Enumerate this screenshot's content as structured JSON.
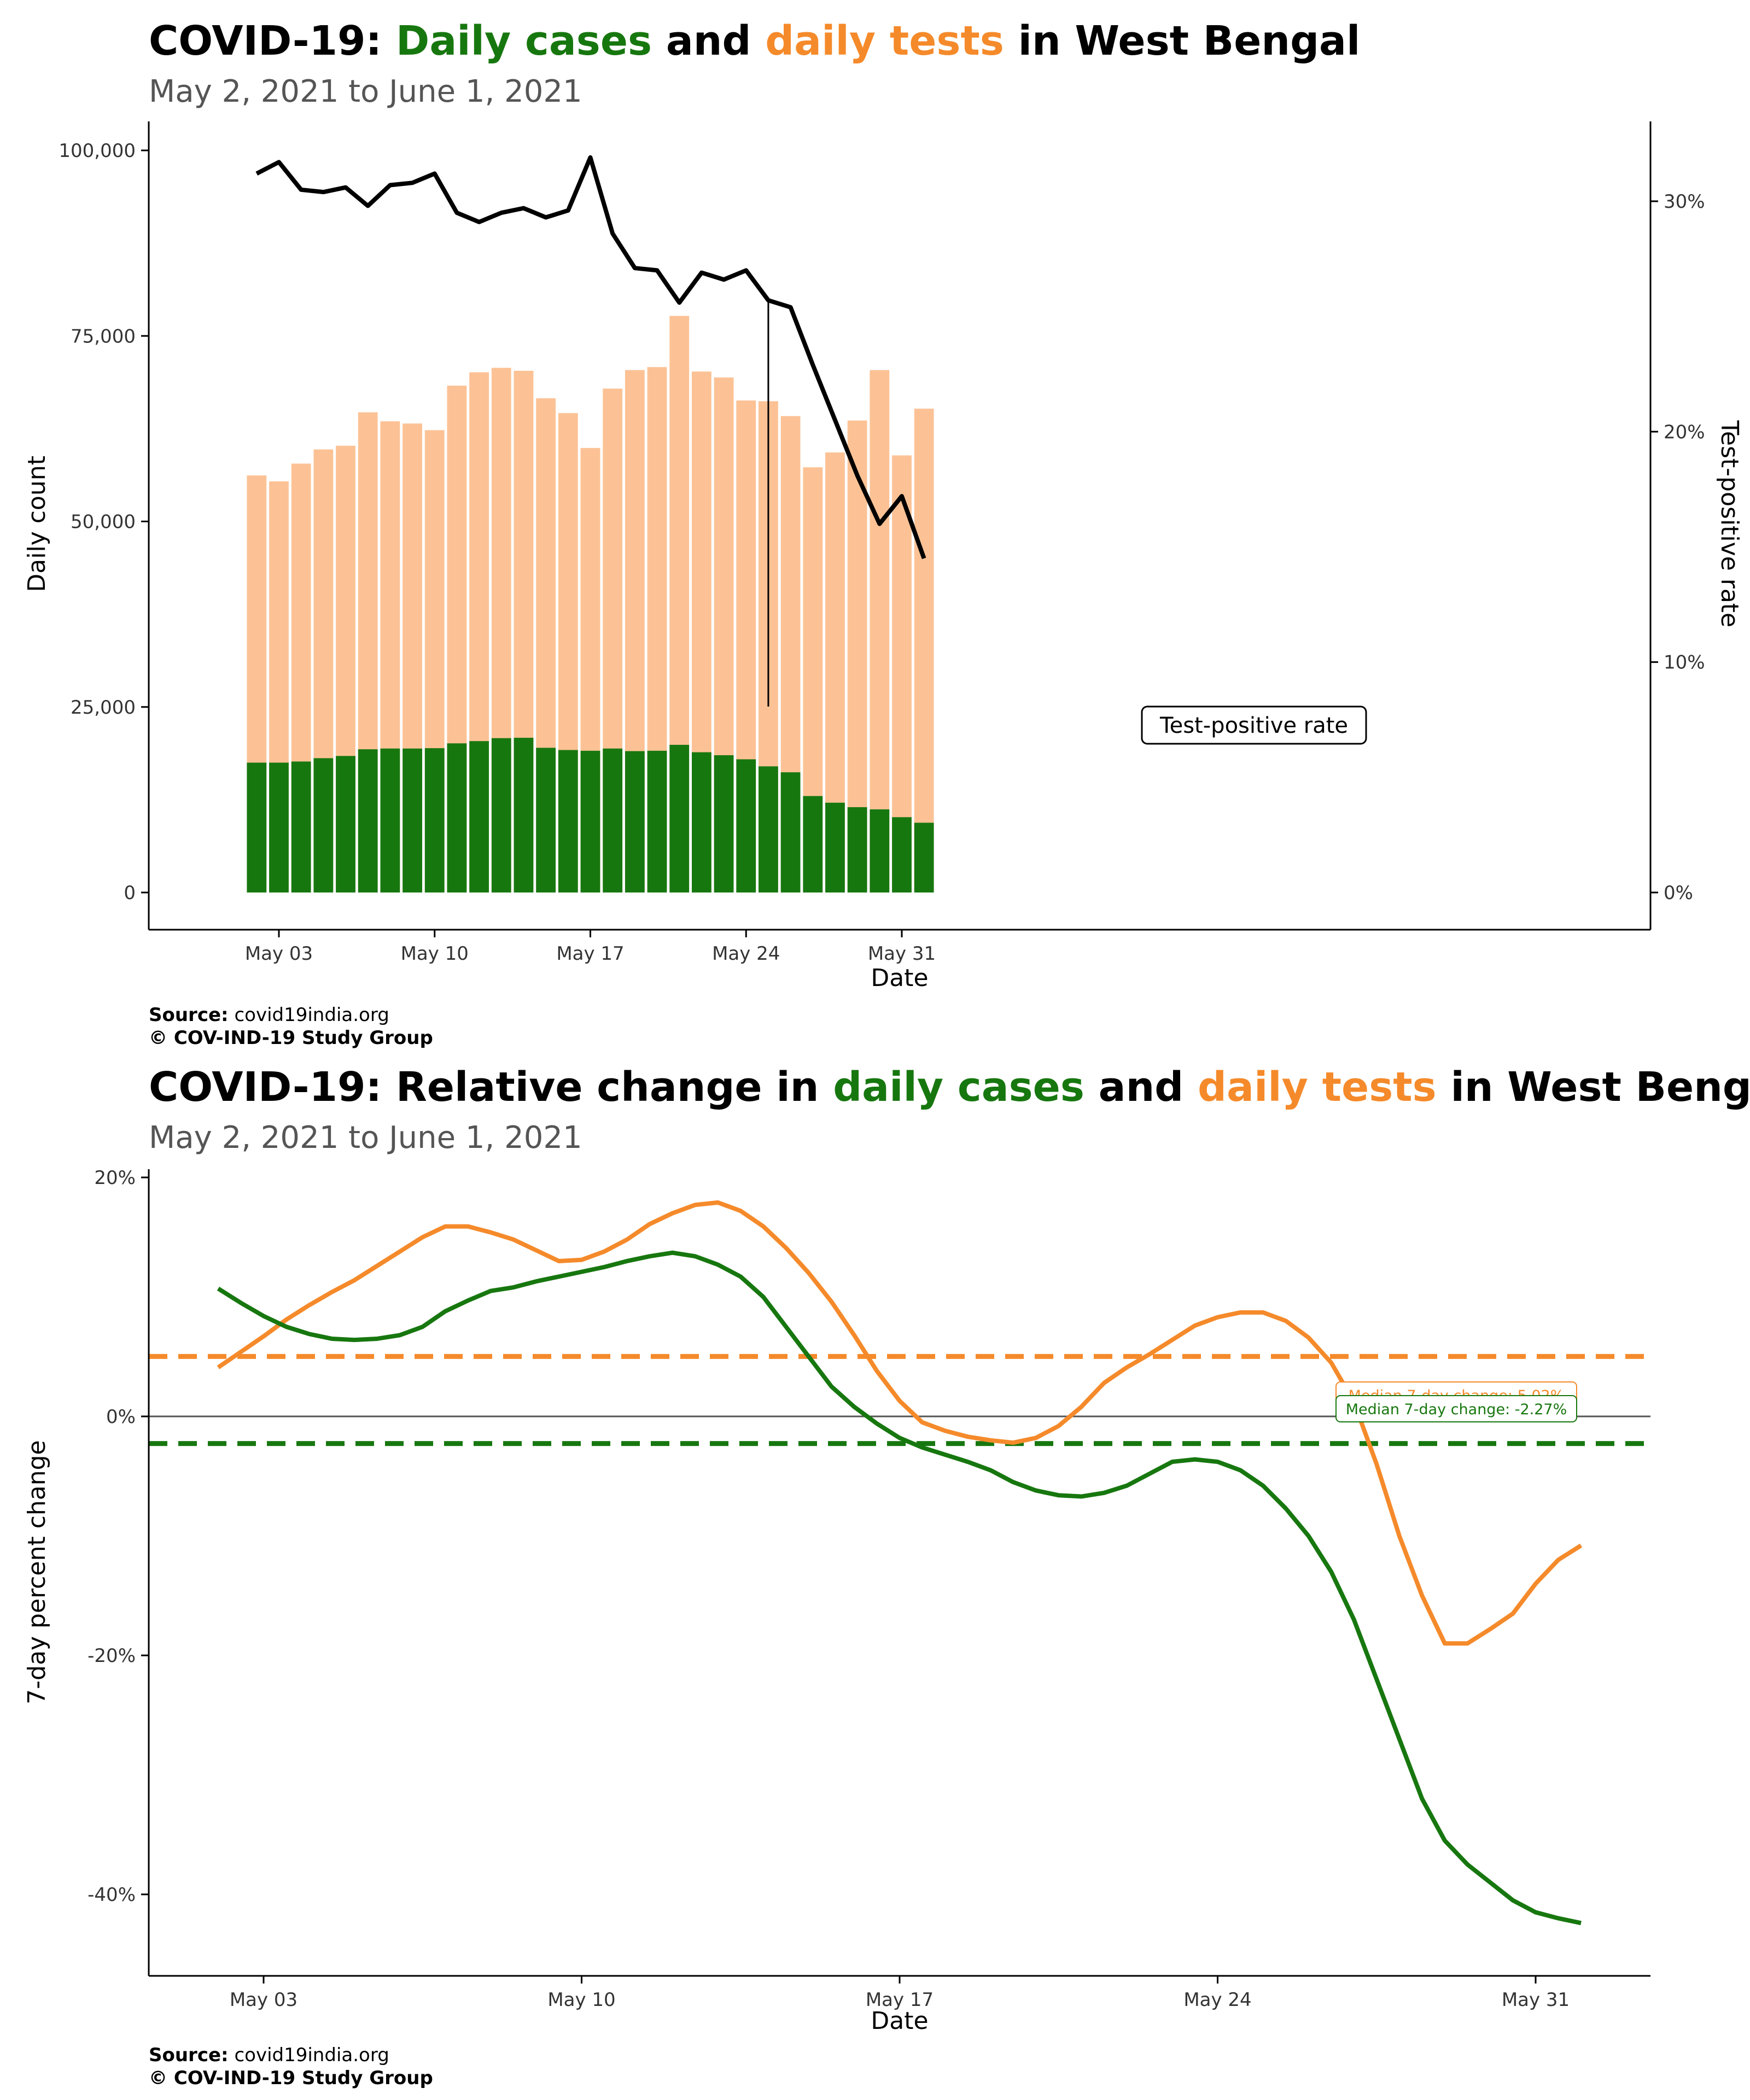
{
  "colors": {
    "cases": "#17770f",
    "tests": "#fcc295",
    "tests_line": "#f58a2b",
    "tpr": "#000000"
  },
  "chart1": {
    "title": {
      "prefix": "COVID-19:",
      "cases": "Daily cases",
      "mid": "and",
      "tests": "daily tests",
      "suffix": "in West Bengal"
    },
    "subtitle": "May  2, 2021 to June  1, 2021",
    "source_label": "Source:",
    "source_value": "covid19india.org",
    "copyright": "© COV-IND-19 Study Group"
  },
  "chart2": {
    "title": {
      "prefix": "COVID-19: Relative change in",
      "cases": "daily cases",
      "mid": "and",
      "tests": "daily tests",
      "suffix": "in West Bengal"
    },
    "subtitle": "May  2, 2021 to June  1, 2021",
    "source_label": "Source:",
    "source_value": "covid19india.org",
    "copyright": "© COV-IND-19 Study Group"
  },
  "chart_data": [
    {
      "type": "bar",
      "xlabel": "Date",
      "ylabel": "Daily count",
      "y2label": "Test-positive rate",
      "ylim": [
        0,
        100000
      ],
      "y2lim": [
        0,
        0.32
      ],
      "yticks": [
        0,
        25000,
        50000,
        75000,
        100000
      ],
      "ytick_labels": [
        "0",
        "25,000",
        "50,000",
        "75,000",
        "100,000"
      ],
      "y2ticks": [
        0,
        0.1,
        0.2,
        0.3
      ],
      "y2tick_labels": [
        "0%",
        "10%",
        "20%",
        "30%"
      ],
      "xticks": [
        "2021-05-03",
        "2021-05-10",
        "2021-05-17",
        "2021-05-24",
        "2021-05-31"
      ],
      "xtick_labels": [
        "May 03",
        "May 10",
        "May 17",
        "May 24",
        "May 31"
      ],
      "dates": [
        "2021-05-02",
        "2021-05-03",
        "2021-05-04",
        "2021-05-05",
        "2021-05-06",
        "2021-05-07",
        "2021-05-08",
        "2021-05-09",
        "2021-05-10",
        "2021-05-11",
        "2021-05-12",
        "2021-05-13",
        "2021-05-14",
        "2021-05-15",
        "2021-05-16",
        "2021-05-17",
        "2021-05-18",
        "2021-05-19",
        "2021-05-20",
        "2021-05-21",
        "2021-05-22",
        "2021-05-23",
        "2021-05-24",
        "2021-05-25",
        "2021-05-26",
        "2021-05-27",
        "2021-05-28",
        "2021-05-29",
        "2021-05-30",
        "2021-05-31",
        "2021-06-01"
      ],
      "series": [
        {
          "name": "Daily cases",
          "values": [
            17500,
            17500,
            17650,
            18100,
            18400,
            19300,
            19400,
            19400,
            19450,
            20100,
            20400,
            20800,
            20850,
            19500,
            19200,
            19100,
            19400,
            19050,
            19100,
            19900,
            18900,
            18500,
            17950,
            17000,
            16200,
            13000,
            12100,
            11500,
            11200,
            10150,
            9400
          ]
        },
        {
          "name": "Daily tests",
          "values": [
            56200,
            55400,
            57800,
            59700,
            60200,
            64700,
            63500,
            63200,
            62300,
            68300,
            70100,
            70700,
            70300,
            66600,
            64600,
            59900,
            67900,
            70400,
            70800,
            77700,
            70200,
            69400,
            66300,
            66200,
            64200,
            57300,
            59300,
            63600,
            70400,
            58900,
            65200
          ]
        },
        {
          "name": "Test-positive rate",
          "values": [
            0.312,
            0.317,
            0.305,
            0.304,
            0.306,
            0.298,
            0.307,
            0.308,
            0.312,
            0.295,
            0.291,
            0.295,
            0.297,
            0.293,
            0.296,
            0.319,
            0.286,
            0.271,
            0.27,
            0.256,
            0.269,
            0.266,
            0.27,
            0.257,
            0.254,
            0.229,
            0.205,
            0.181,
            0.16,
            0.172,
            0.145
          ]
        }
      ],
      "annotation": {
        "text": "Test-positive rate",
        "date": "2021-05-25"
      }
    },
    {
      "type": "line",
      "xlabel": "Date",
      "ylabel": "7-day percent change",
      "ylim": [
        -0.46,
        0.21
      ],
      "yticks": [
        -0.4,
        -0.2,
        0,
        0.2
      ],
      "ytick_labels": [
        "-40%",
        "-20%",
        "0%",
        "20%"
      ],
      "xticks": [
        "2021-05-03",
        "2021-05-10",
        "2021-05-17",
        "2021-05-24",
        "2021-05-31"
      ],
      "xtick_labels": [
        "May 03",
        "May 10",
        "May 17",
        "May 24",
        "May 31"
      ],
      "series": [
        {
          "name": "Daily tests",
          "x": [
            2,
            2.5,
            3,
            3.5,
            4,
            4.5,
            5,
            5.5,
            6,
            6.5,
            7,
            7.5,
            8,
            8.5,
            9,
            9.5,
            10,
            10.5,
            11,
            11.5,
            12,
            12.5,
            13,
            13.5,
            14,
            14.5,
            15,
            15.5,
            16,
            16.5,
            17,
            17.5,
            18,
            18.5,
            19,
            19.5,
            20,
            20.5,
            21,
            21.5,
            22,
            22.5,
            23,
            23.5,
            24,
            24.5,
            25,
            25.5,
            26,
            26.5,
            27,
            27.5,
            28,
            28.5,
            29,
            29.5,
            30,
            30.5,
            31,
            31.5,
            32
          ],
          "values": [
            0.041,
            0.054,
            0.067,
            0.081,
            0.093,
            0.104,
            0.114,
            0.126,
            0.138,
            0.15,
            0.159,
            0.159,
            0.154,
            0.148,
            0.139,
            0.13,
            0.131,
            0.138,
            0.148,
            0.161,
            0.17,
            0.177,
            0.179,
            0.172,
            0.159,
            0.141,
            0.12,
            0.096,
            0.068,
            0.038,
            0.013,
            -0.005,
            -0.012,
            -0.017,
            -0.02,
            -0.022,
            -0.018,
            -0.008,
            0.008,
            0.028,
            0.041,
            0.052,
            0.064,
            0.076,
            0.083,
            0.087,
            0.087,
            0.08,
            0.066,
            0.045,
            0.012,
            -0.04,
            -0.1,
            -0.15,
            -0.19,
            -0.19,
            -0.178,
            -0.165,
            -0.14,
            -0.12,
            -0.108
          ]
        },
        {
          "name": "Daily cases",
          "x": [
            2,
            2.5,
            3,
            3.5,
            4,
            4.5,
            5,
            5.5,
            6,
            6.5,
            7,
            7.5,
            8,
            8.5,
            9,
            9.5,
            10,
            10.5,
            11,
            11.5,
            12,
            12.5,
            13,
            13.5,
            14,
            14.5,
            15,
            15.5,
            16,
            16.5,
            17,
            17.5,
            18,
            18.5,
            19,
            19.5,
            20,
            20.5,
            21,
            21.5,
            22,
            22.5,
            23,
            23.5,
            24,
            24.5,
            25,
            25.5,
            26,
            26.5,
            27,
            27.5,
            28,
            28.5,
            29,
            29.5,
            30,
            30.5,
            31,
            31.5,
            32
          ],
          "values": [
            0.107,
            0.095,
            0.084,
            0.075,
            0.069,
            0.065,
            0.064,
            0.065,
            0.068,
            0.075,
            0.088,
            0.097,
            0.105,
            0.108,
            0.113,
            0.117,
            0.121,
            0.125,
            0.13,
            0.134,
            0.137,
            0.134,
            0.127,
            0.117,
            0.1,
            0.075,
            0.05,
            0.025,
            0.008,
            -0.006,
            -0.018,
            -0.026,
            -0.032,
            -0.038,
            -0.045,
            -0.055,
            -0.062,
            -0.066,
            -0.067,
            -0.064,
            -0.058,
            -0.048,
            -0.038,
            -0.036,
            -0.038,
            -0.045,
            -0.058,
            -0.077,
            -0.1,
            -0.13,
            -0.17,
            -0.22,
            -0.27,
            -0.32,
            -0.355,
            -0.375,
            -0.39,
            -0.405,
            -0.415,
            -0.42,
            -0.424
          ]
        }
      ],
      "reference_lines": [
        {
          "label": "Median 7-day change: 5.02%",
          "value": 0.0502,
          "series": "Daily tests"
        },
        {
          "label": "Median 7-day change: -2.27%",
          "value": -0.0227,
          "series": "Daily cases"
        }
      ]
    }
  ]
}
